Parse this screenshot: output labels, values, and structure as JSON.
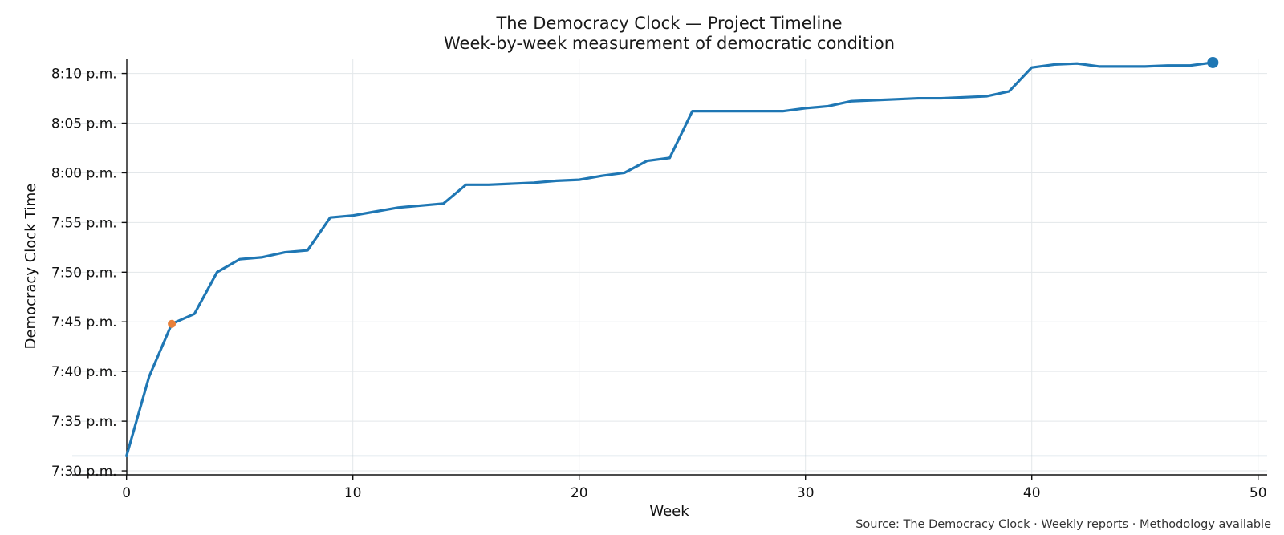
{
  "chart_data": {
    "type": "line",
    "title": "The Democracy Clock — Project Timeline",
    "subtitle": "Week-by-week measurement of democratic condition",
    "xlabel": "Week",
    "ylabel": "Democracy Clock Time",
    "source": "Source: The Democracy Clock · Weekly reports · Methodology available",
    "xlim": [
      -2.4,
      50.4
    ],
    "ylim": [
      449.6,
      491.5
    ],
    "x_ticks": [
      0,
      10,
      20,
      30,
      40,
      50
    ],
    "y_ticks": [
      {
        "value": 450,
        "label": "7:30 p.m."
      },
      {
        "value": 455,
        "label": "7:35 p.m."
      },
      {
        "value": 460,
        "label": "7:40 p.m."
      },
      {
        "value": 465,
        "label": "7:45 p.m."
      },
      {
        "value": 470,
        "label": "7:50 p.m."
      },
      {
        "value": 475,
        "label": "7:55 p.m."
      },
      {
        "value": 480,
        "label": "8:00 p.m."
      },
      {
        "value": 485,
        "label": "8:05 p.m."
      },
      {
        "value": 490,
        "label": "8:10 p.m."
      }
    ],
    "grid": true,
    "reference_line": {
      "y": 451.5
    },
    "series": [
      {
        "color": "#1f77b4",
        "x": [
          0,
          1,
          2,
          3,
          4,
          5,
          6,
          7,
          8,
          9,
          10,
          11,
          12,
          13,
          14,
          15,
          16,
          17,
          18,
          19,
          20,
          21,
          22,
          23,
          24,
          25,
          26,
          27,
          28,
          29,
          30,
          31,
          32,
          33,
          34,
          35,
          36,
          37,
          38,
          39,
          40,
          41,
          42,
          43,
          44,
          45,
          46,
          47,
          48
        ],
        "y": [
          451.5,
          459.5,
          464.8,
          465.8,
          470.0,
          471.3,
          471.5,
          472.0,
          472.2,
          475.5,
          475.7,
          476.1,
          476.5,
          476.7,
          476.9,
          478.8,
          478.8,
          478.9,
          479.0,
          479.2,
          479.3,
          479.7,
          480.0,
          481.2,
          481.5,
          486.2,
          486.2,
          486.2,
          486.2,
          486.2,
          486.5,
          486.7,
          487.2,
          487.3,
          487.4,
          487.5,
          487.5,
          487.6,
          487.7,
          488.2,
          490.6,
          490.9,
          491.0,
          490.7,
          490.7,
          490.7,
          490.8,
          490.8,
          491.1
        ]
      }
    ],
    "highlights": [
      {
        "x": 2,
        "y": 464.8,
        "color": "#e8803a"
      },
      {
        "x": 48,
        "y": 491.1,
        "color": "#1f77b4"
      }
    ],
    "colors": {
      "line": "#1f77b4",
      "reference": "#b8ccd8",
      "grid": "#e3e7ea",
      "axis": "#111111"
    }
  }
}
